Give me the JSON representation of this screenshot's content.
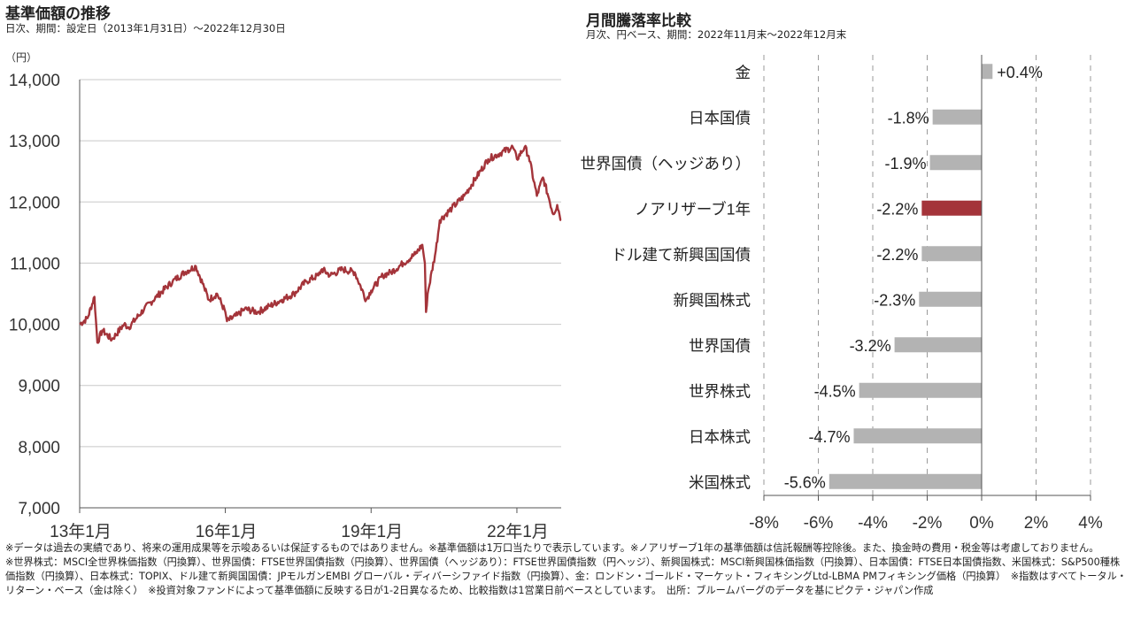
{
  "left": {
    "title": "基準価額の推移",
    "subtitle": "日次、期間：設定日（2013年1月31日）～2022年12月30日"
  },
  "right": {
    "title": "月間騰落率比較",
    "subtitle": "月次、円ベース、期間：2022年11月末～2022年12月末"
  },
  "notes": [
    "※データは過去の実績であり、将来の運用成果等を示唆あるいは保証するものではありません。※基準価額は1万口当たりで表示しています。※ノアリザーブ1年の基準価額は信託報酬等控除後。また、換金時の費用・税金等は考慮しておりません。",
    "※世界株式：MSCI全世界株価指数（円換算）、世界国債：FTSE世界国債指数（円換算）、世界国債（ヘッジあり）：FTSE世界国債指数（円ヘッジ）、新興国株式：MSCI新興国株価指数（円換算）、日本国債：FTSE日本国債指数、米国株式：S&P500種株価指数（円換算）、日本株式：TOPIX、ドル建て新興国国債：JPモルガンEMBI グローバル・ディバーシファイド指数（円換算）、金：ロンドン・ゴールド・マーケット・フィキシングLtd-LBMA PMフィキシング価格（円換算）　※指数はすべてトータル・リターン・ベース（金は除く）　※投資対象ファンドによって基準価額に反映する日が1-2日異なるため、比較指数は1営業日前ベースとしています。　出所：ブルームバーグのデータを基にピクテ・ジャパン作成"
  ],
  "colors": {
    "line": "#a4343a",
    "bar_default": "#b3b3b3",
    "bar_highlight": "#a4343a",
    "grid": "#c8c8c8"
  },
  "chart_data": [
    {
      "type": "line",
      "title": "基準価額の推移",
      "ylabel": "（円）",
      "ylim": [
        7000,
        14000
      ],
      "yticks": [
        "7,000",
        "8,000",
        "9,000",
        "10,000",
        "11,000",
        "12,000",
        "13,000",
        "14,000"
      ],
      "ytick_values": [
        7000,
        8000,
        9000,
        10000,
        11000,
        12000,
        13000,
        14000
      ],
      "xlim": [
        "2013-01-31",
        "2022-12-30"
      ],
      "xticks": [
        "13年1月",
        "16年1月",
        "19年1月",
        "22年1月"
      ],
      "xtick_values": [
        "2013-01-31",
        "2016-01-31",
        "2019-01-31",
        "2022-01-31"
      ],
      "grid": "horizontal",
      "series": [
        {
          "x": [
            "2013-01-31",
            "2013-03-31",
            "2013-05-22",
            "2013-06-13",
            "2013-07-20",
            "2013-09-30",
            "2013-12-31",
            "2014-02-04",
            "2014-05-31",
            "2014-08-31",
            "2014-12-31",
            "2015-03-31",
            "2015-06-24",
            "2015-08-25",
            "2015-09-29",
            "2015-11-30",
            "2016-01-31",
            "2016-02-12",
            "2016-04-30",
            "2016-06-24",
            "2016-09-30",
            "2016-12-31",
            "2017-03-31",
            "2017-06-30",
            "2017-09-30",
            "2017-12-31",
            "2018-01-26",
            "2018-03-31",
            "2018-06-30",
            "2018-09-30",
            "2018-12-25",
            "2019-01-31",
            "2019-04-30",
            "2019-06-30",
            "2019-09-30",
            "2019-12-31",
            "2020-02-20",
            "2020-03-10",
            "2020-03-19",
            "2020-03-31",
            "2020-05-31",
            "2020-06-30",
            "2020-09-30",
            "2020-12-31",
            "2021-03-31",
            "2021-06-30",
            "2021-09-30",
            "2021-12-31",
            "2022-01-31",
            "2022-03-31",
            "2022-04-30",
            "2022-06-30",
            "2022-08-15",
            "2022-09-30",
            "2022-10-31",
            "2022-11-30",
            "2022-12-30"
          ],
          "values": [
            10000,
            10100,
            10450,
            9700,
            9900,
            9750,
            10000,
            9950,
            10250,
            10450,
            10700,
            10850,
            10950,
            10600,
            10400,
            10500,
            10200,
            10050,
            10150,
            10250,
            10200,
            10300,
            10400,
            10500,
            10700,
            10800,
            10900,
            10800,
            10900,
            10850,
            10400,
            10550,
            10800,
            10850,
            11000,
            11150,
            11300,
            11000,
            10200,
            10500,
            11200,
            11700,
            11900,
            12100,
            12400,
            12700,
            12800,
            12900,
            12700,
            12900,
            12750,
            12100,
            12400,
            12050,
            11800,
            11950,
            11700
          ]
        }
      ]
    },
    {
      "type": "bar",
      "orientation": "horizontal",
      "title": "月間騰落率比較",
      "xlim": [
        -8,
        4
      ],
      "xticks": [
        "-8%",
        "-6%",
        "-4%",
        "-2%",
        "0%",
        "2%",
        "4%"
      ],
      "xtick_values": [
        -8,
        -6,
        -4,
        -2,
        0,
        2,
        4
      ],
      "grid": "vertical-dashed",
      "categories": [
        "金",
        "日本国債",
        "世界国債（ヘッジあり）",
        "ノアリザーブ1年",
        "ドル建て新興国国債",
        "新興国株式",
        "世界国債",
        "世界株式",
        "日本株式",
        "米国株式"
      ],
      "values": [
        0.4,
        -1.8,
        -1.9,
        -2.2,
        -2.2,
        -2.3,
        -3.2,
        -4.5,
        -4.7,
        -5.6
      ],
      "labels": [
        "+0.4%",
        "-1.8%",
        "-1.9%",
        "-2.2%",
        "-2.2%",
        "-2.3%",
        "-3.2%",
        "-4.5%",
        "-4.7%",
        "-5.6%"
      ],
      "highlight": "ノアリザーブ1年"
    }
  ]
}
